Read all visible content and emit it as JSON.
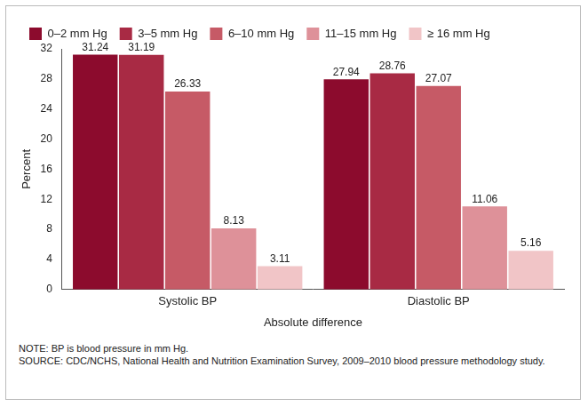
{
  "chart_data": {
    "type": "bar",
    "categories": [
      "Systolic BP",
      "Diastolic BP"
    ],
    "series": [
      {
        "name": "0–2 mm Hg",
        "color": "#8c0b2d",
        "values": [
          31.24,
          27.94
        ]
      },
      {
        "name": "3–5 mm Hg",
        "color": "#a82a44",
        "values": [
          31.19,
          28.76
        ]
      },
      {
        "name": "6–10 mm Hg",
        "color": "#c65a66",
        "values": [
          26.33,
          27.07
        ]
      },
      {
        "name": "11–15 mm Hg",
        "color": "#de9199",
        "values": [
          8.13,
          11.06
        ]
      },
      {
        "name": "≥ 16 mm Hg",
        "color": "#f1c5c7",
        "values": [
          3.11,
          5.16
        ]
      }
    ],
    "x_label": "Absolute difference",
    "y_label": "Percent",
    "ylim": [
      0,
      32
    ],
    "yticks": [
      0,
      4,
      8,
      12,
      16,
      20,
      24,
      28,
      32
    ],
    "grid": false,
    "legend": "top",
    "data_labels": true,
    "annotations": [
      "NOTE: BP is blood pressure in mm Hg.",
      "SOURCE: CDC/NCHS, National Health and Nutrition Examination Survey, 2009–2010 blood pressure methodology study."
    ]
  }
}
